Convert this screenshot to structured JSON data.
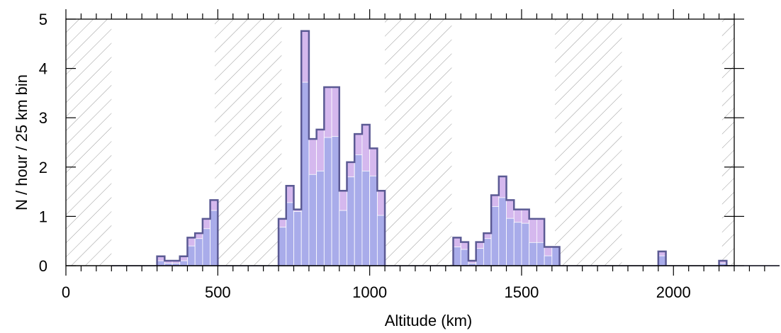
{
  "chart_data": {
    "type": "bar",
    "xlabel": "Altitude (km)",
    "ylabel": "N / hour / 25 km bin",
    "xlim": [
      0,
      2200
    ],
    "ylim": [
      0,
      5
    ],
    "x_ticks": [
      "0",
      "500",
      "1000",
      "1500",
      "2000"
    ],
    "y_ticks": [
      "0",
      "1",
      "2",
      "3",
      "4",
      "5"
    ],
    "bin_width_km": 25,
    "grid": false,
    "legend": "none",
    "colors": {
      "total_fill": "#d5b8ee",
      "component_fill": "#a9acea",
      "outline": "#5b5a94",
      "hatch": "#9a9a9a",
      "axis": "#000000"
    },
    "hatched_regions_km": [
      [
        0,
        150
      ],
      [
        490,
        710
      ],
      [
        1050,
        1270
      ],
      [
        1610,
        1830
      ],
      [
        2160,
        2200
      ]
    ],
    "series": [
      {
        "role": "total (outlined histogram)",
        "bins_start": [
          300,
          325,
          350,
          375,
          400,
          425,
          450,
          475,
          700,
          725,
          750,
          775,
          800,
          825,
          850,
          875,
          900,
          925,
          950,
          975,
          1000,
          1025,
          1275,
          1300,
          1325,
          1350,
          1375,
          1400,
          1425,
          1450,
          1475,
          1500,
          1525,
          1550,
          1575,
          1600,
          1950,
          2150
        ],
        "values": [
          0.19,
          0.1,
          0.1,
          0.19,
          0.57,
          0.66,
          0.95,
          1.33,
          0.95,
          1.62,
          1.14,
          4.76,
          2.57,
          2.76,
          3.62,
          3.62,
          1.52,
          2.1,
          2.67,
          2.86,
          2.38,
          1.52,
          0.57,
          0.48,
          0.1,
          0.48,
          0.66,
          1.43,
          1.81,
          1.33,
          1.14,
          1.14,
          0.95,
          0.95,
          0.38,
          0.38,
          0.29,
          0.1
        ]
      },
      {
        "role": "component (lower fill)",
        "bins_start": [
          300,
          325,
          350,
          375,
          400,
          425,
          450,
          475,
          700,
          725,
          750,
          775,
          800,
          825,
          850,
          875,
          900,
          925,
          950,
          975,
          1000,
          1025,
          1275,
          1300,
          1325,
          1350,
          1375,
          1400,
          1425,
          1450,
          1475,
          1500,
          1525,
          1550,
          1575,
          1600,
          1950,
          2150
        ],
        "values": [
          0.1,
          0.05,
          0.05,
          0.1,
          0.4,
          0.55,
          0.75,
          1.12,
          0.78,
          1.28,
          1.1,
          3.72,
          1.85,
          1.92,
          2.6,
          2.62,
          1.12,
          1.8,
          2.25,
          1.92,
          1.82,
          1.02,
          0.38,
          0.33,
          0.05,
          0.35,
          0.55,
          1.2,
          1.38,
          0.96,
          0.88,
          0.86,
          0.47,
          0.47,
          0.2,
          0.38,
          0.2,
          0.05
        ]
      }
    ]
  }
}
